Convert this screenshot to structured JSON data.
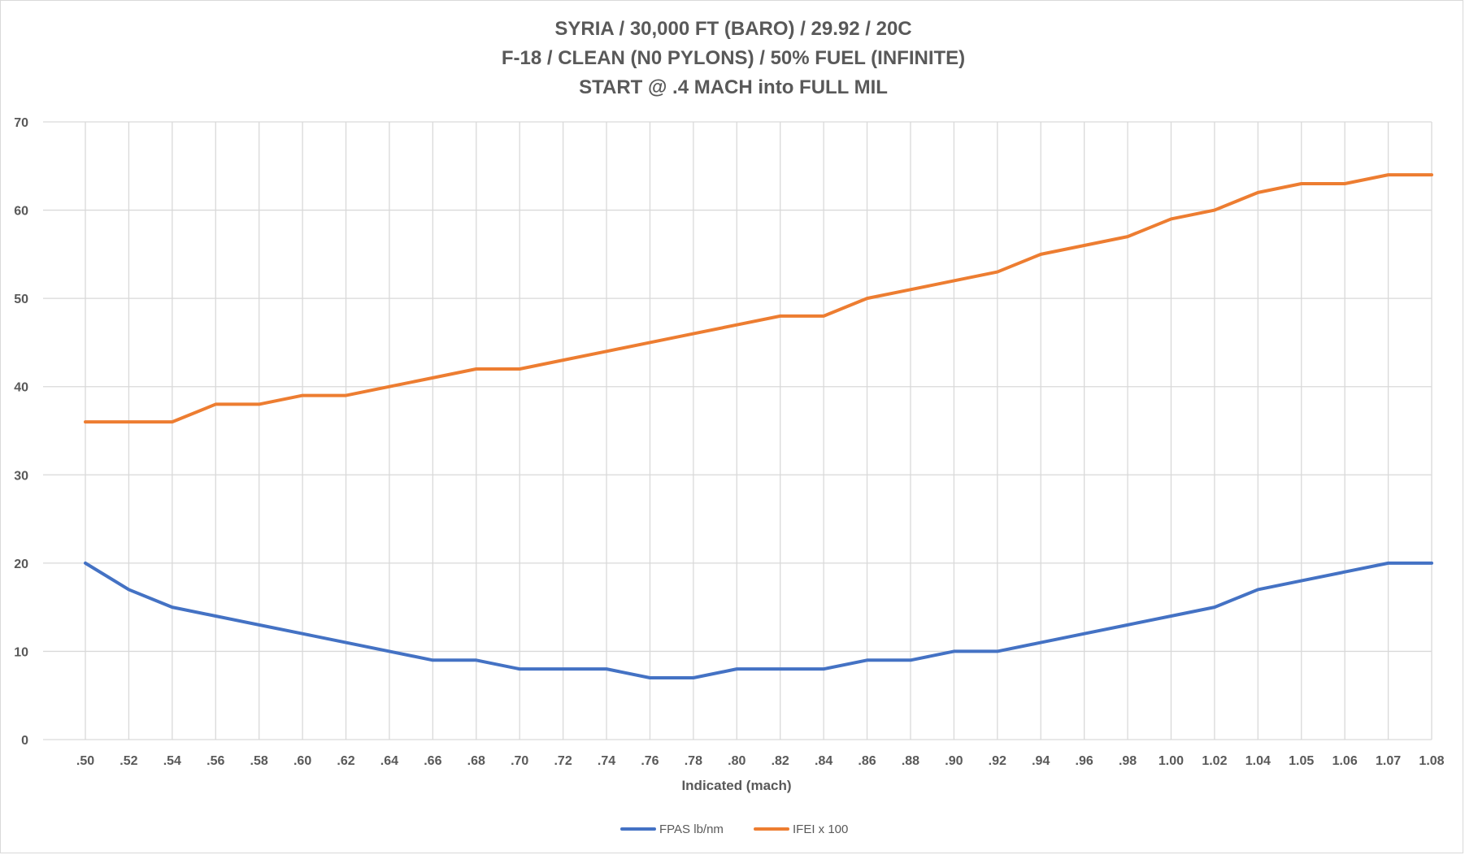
{
  "chart_data": {
    "type": "line",
    "title_lines": [
      "SYRIA / 30,000 FT (BARO) / 29.92 / 20C",
      "F-18 / CLEAN (N0 PYLONS) / 50% FUEL (INFINITE)",
      "START @ .4 MACH into FULL MIL"
    ],
    "xlabel": "Indicated (mach)",
    "ylabel": "",
    "ylim": [
      0,
      70
    ],
    "yticks": [
      0,
      10,
      20,
      30,
      40,
      50,
      60,
      70
    ],
    "grid": true,
    "legend_position": "bottom",
    "categories": [
      ".50",
      ".52",
      ".54",
      ".56",
      ".58",
      ".60",
      ".62",
      ".64",
      ".66",
      ".68",
      ".70",
      ".72",
      ".74",
      ".76",
      ".78",
      ".80",
      ".82",
      ".84",
      ".86",
      ".88",
      ".90",
      ".92",
      ".94",
      ".96",
      ".98",
      "1.00",
      "1.02",
      "1.04",
      "1.05",
      "1.06",
      "1.07",
      "1.08"
    ],
    "series": [
      {
        "name": "FPAS lb/nm",
        "color": "#4472c4",
        "values": [
          20,
          17,
          15,
          14,
          13,
          12,
          11,
          10,
          9,
          9,
          8,
          8,
          8,
          7,
          7,
          8,
          8,
          8,
          9,
          9,
          10,
          10,
          11,
          12,
          13,
          14,
          15,
          17,
          18,
          19,
          20,
          20
        ]
      },
      {
        "name": "IFEI x 100",
        "color": "#ed7d31",
        "values": [
          36,
          36,
          36,
          38,
          38,
          39,
          39,
          40,
          41,
          42,
          42,
          43,
          44,
          45,
          46,
          47,
          48,
          48,
          50,
          51,
          52,
          53,
          55,
          56,
          57,
          59,
          60,
          62,
          63,
          63,
          64,
          64
        ]
      }
    ]
  }
}
